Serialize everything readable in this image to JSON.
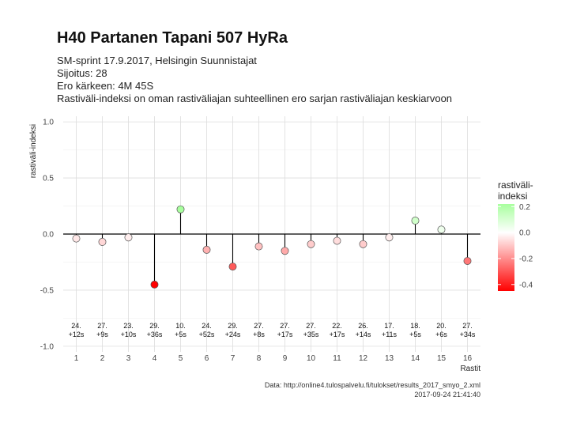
{
  "title": "H40 Partanen Tapani 507 HyRa",
  "subtitle_lines": [
    "SM-sprint 17.9.2017, Helsingin Suunnistajat",
    "Sijoitus: 28",
    "Ero kärkeen: 4M 45S",
    "Rastiväli-indeksi on oman rastiväliajan suhteellinen ero sarjan rastiväliajan keskiarvoon"
  ],
  "caption_lines": [
    "Data: http://online4.tulospalvelu.fi/tulokset/results_2017_smyo_2.xml",
    "2017-09-24 21:41:40"
  ],
  "chart_data": {
    "type": "scatter",
    "style": "lollipop",
    "xlabel": "Rastit",
    "ylabel": "rastiväli-indeksi",
    "xlim": [
      0.5,
      16.5
    ],
    "ylim": [
      -1.05,
      1.05
    ],
    "xticks": [
      1,
      2,
      3,
      4,
      5,
      6,
      7,
      8,
      9,
      10,
      11,
      12,
      13,
      14,
      15,
      16
    ],
    "yticks": [
      1.0,
      0.5,
      0.0,
      -0.5,
      -1.0
    ],
    "ytick_labels": [
      "1.0",
      "0.5",
      "0.0",
      "-0.5",
      "-1.0"
    ],
    "grid": true,
    "x": [
      1,
      2,
      3,
      4,
      5,
      6,
      7,
      8,
      9,
      10,
      11,
      12,
      13,
      14,
      15,
      16
    ],
    "values": [
      -0.04,
      -0.07,
      -0.03,
      -0.45,
      0.22,
      -0.14,
      -0.29,
      -0.11,
      -0.15,
      -0.09,
      -0.06,
      -0.09,
      -0.03,
      0.12,
      0.04,
      -0.24
    ],
    "labels_top": [
      "24.",
      "27.",
      "23.",
      "29.",
      "10.",
      "24.",
      "29.",
      "27.",
      "27.",
      "27.",
      "22.",
      "26.",
      "17.",
      "18.",
      "20.",
      "27."
    ],
    "labels_bottom": [
      "+12s",
      "+9s",
      "+10s",
      "+36s",
      "+5s",
      "+52s",
      "+24s",
      "+8s",
      "+17s",
      "+35s",
      "+17s",
      "+14s",
      "+11s",
      "+5s",
      "+6s",
      "+34s"
    ],
    "legend": {
      "title_lines": [
        "rastiväli-",
        "indeksi"
      ],
      "placement": "right",
      "range": [
        -0.45,
        0.22
      ],
      "ticks": [
        0.2,
        0.0,
        -0.2,
        -0.4
      ],
      "tick_labels": [
        "0.2",
        "0.0",
        "-0.2",
        "-0.4"
      ],
      "colors": {
        "high": "#a8ff9e",
        "mid": "#ffffff",
        "low": "#ff0000"
      }
    }
  }
}
